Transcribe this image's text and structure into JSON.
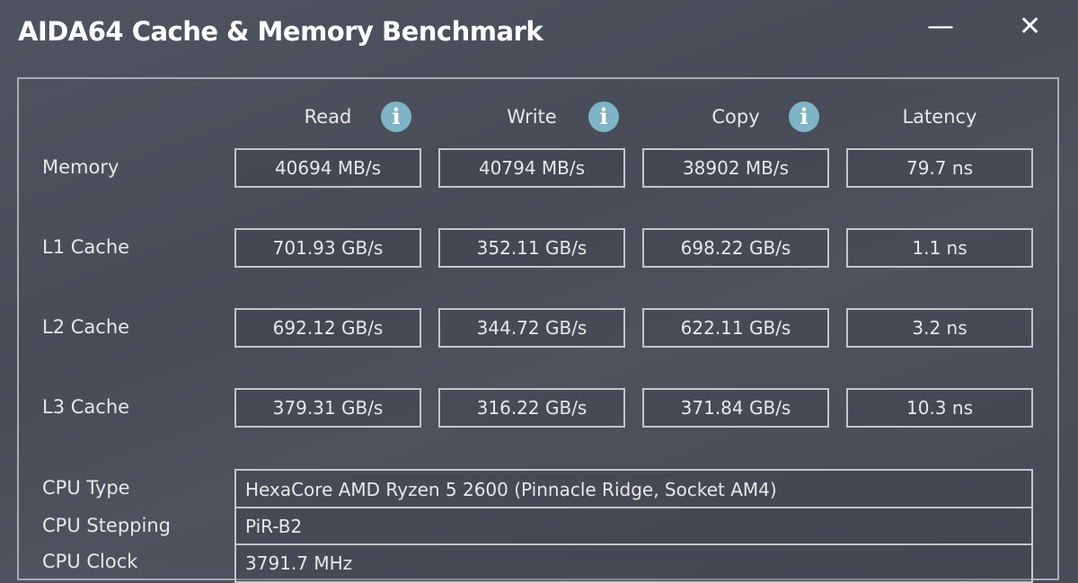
{
  "window": {
    "title": "AIDA64 Cache & Memory Benchmark",
    "minimize": "—",
    "close": "✕"
  },
  "columns": [
    "Read",
    "Write",
    "Copy",
    "Latency"
  ],
  "rows": [
    {
      "label": "Memory",
      "values": [
        "40694 MB/s",
        "40794 MB/s",
        "38902 MB/s",
        "79.7 ns"
      ]
    },
    {
      "label": "L1 Cache",
      "values": [
        "701.93 GB/s",
        "352.11 GB/s",
        "698.22 GB/s",
        "1.1 ns"
      ]
    },
    {
      "label": "L2 Cache",
      "values": [
        "692.12 GB/s",
        "344.72 GB/s",
        "622.11 GB/s",
        "3.2 ns"
      ]
    },
    {
      "label": "L3 Cache",
      "values": [
        "379.31 GB/s",
        "316.22 GB/s",
        "371.84 GB/s",
        "10.3 ns"
      ]
    }
  ],
  "info": [
    {
      "label": "CPU Type",
      "value": "HexaCore AMD Ryzen 5 2600  (Pinnacle Ridge, Socket AM4)"
    },
    {
      "label": "CPU Stepping",
      "value": "PiR-B2"
    },
    {
      "label": "CPU Clock",
      "value": "3791.7 MHz"
    }
  ],
  "info_icon": "i"
}
